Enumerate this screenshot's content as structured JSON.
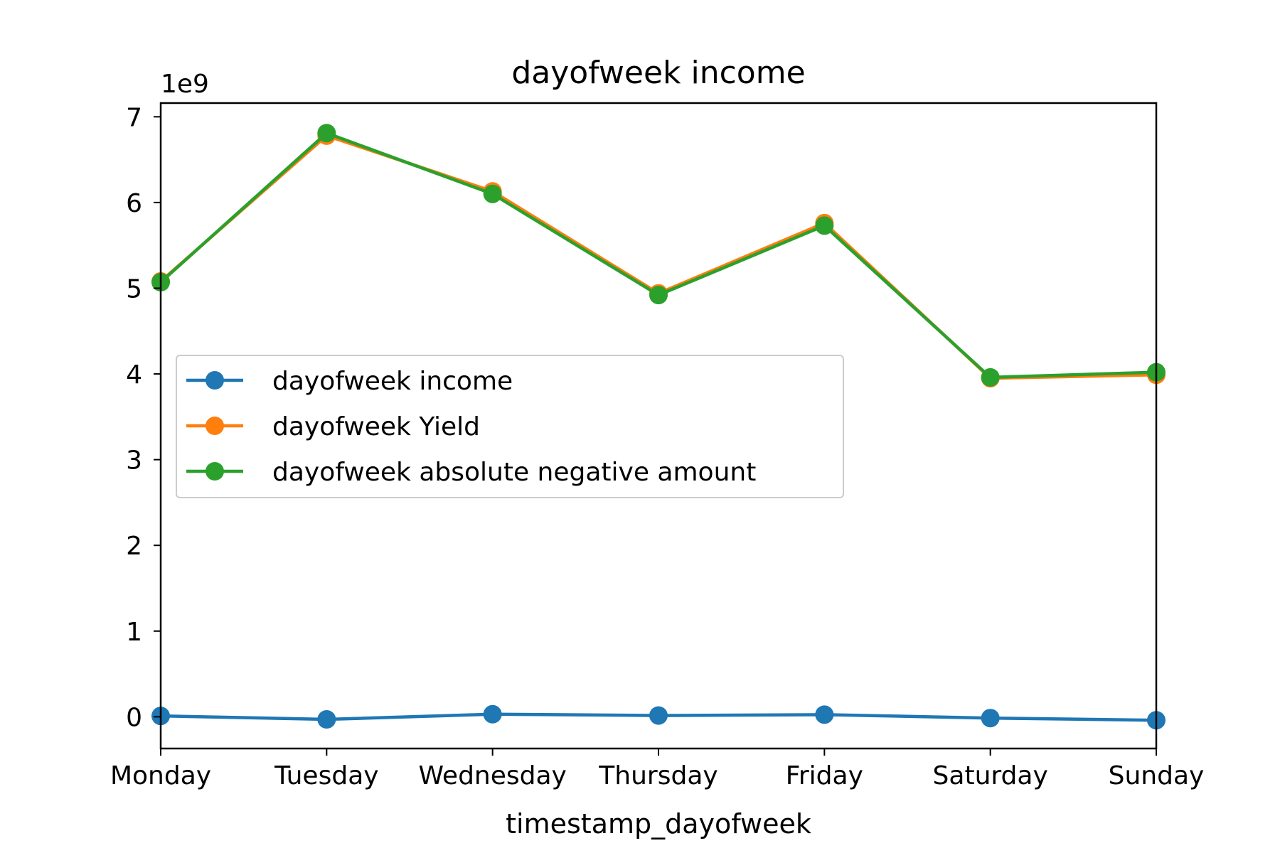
{
  "chart_data": {
    "type": "line",
    "title": "dayofweek income",
    "xlabel": "timestamp_dayofweek",
    "ylabel": "",
    "y_offset_label": "1e9",
    "y_scale_factor": 1000000000,
    "categories": [
      "Monday",
      "Tuesday",
      "Wednesday",
      "Thursday",
      "Friday",
      "Saturday",
      "Sunday"
    ],
    "ylim": [
      -370000000,
      7160000000
    ],
    "yticks": [
      0,
      1000000000,
      2000000000,
      3000000000,
      4000000000,
      5000000000,
      6000000000,
      7000000000
    ],
    "ytick_labels": [
      "0",
      "1",
      "2",
      "3",
      "4",
      "5",
      "6",
      "7"
    ],
    "grid": false,
    "legend_position": "center-left",
    "series": [
      {
        "name": "dayofweek income",
        "color": "#1f77b4",
        "values": [
          10000000,
          -30000000,
          30000000,
          15000000,
          25000000,
          -15000000,
          -40000000
        ]
      },
      {
        "name": "dayofweek Yield",
        "color": "#ff7f0e",
        "values": [
          5080000000,
          6780000000,
          6130000000,
          4940000000,
          5760000000,
          3950000000,
          3990000000
        ]
      },
      {
        "name": "dayofweek absolute negative amount",
        "color": "#2ca02c",
        "values": [
          5070000000,
          6810000000,
          6100000000,
          4920000000,
          5730000000,
          3960000000,
          4020000000
        ]
      }
    ]
  }
}
